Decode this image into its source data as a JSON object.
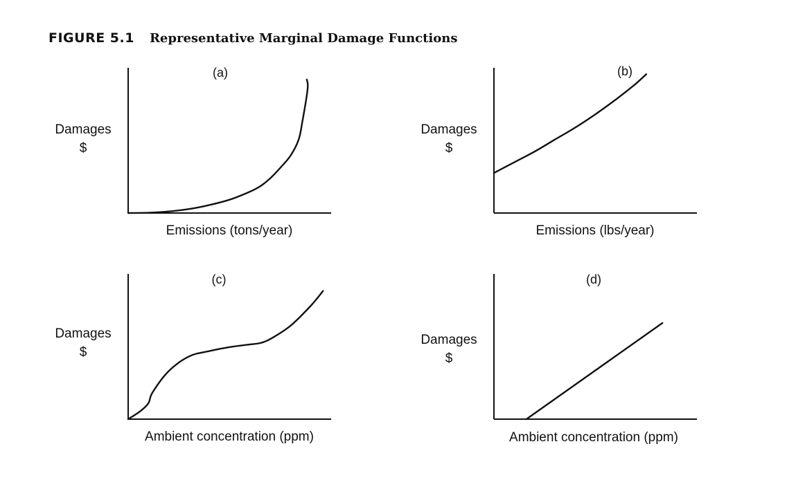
{
  "figure": {
    "number": "FIGURE 5.1",
    "title": "Representative Marginal Damage Functions"
  },
  "chart_data": [
    {
      "type": "line",
      "panel": "(a)",
      "ylabel": [
        "Damages",
        "$"
      ],
      "xlabel": "Emissions (tons/year)",
      "xlim": [
        0,
        1
      ],
      "ylim": [
        0,
        1
      ],
      "series": [
        {
          "x": [
            0,
            0.1,
            0.2,
            0.3,
            0.4,
            0.5,
            0.6,
            0.65,
            0.7,
            0.75,
            0.8,
            0.84,
            0.86,
            0.88,
            0.885,
            0.88
          ],
          "y": [
            0,
            0.002,
            0.012,
            0.03,
            0.06,
            0.1,
            0.16,
            0.2,
            0.26,
            0.34,
            0.43,
            0.55,
            0.7,
            0.88,
            0.96,
            1.0
          ]
        }
      ]
    },
    {
      "type": "line",
      "panel": "(b)",
      "ylabel": [
        "Damages",
        "$"
      ],
      "xlabel": "Emissions (lbs/year)",
      "xlim": [
        0,
        1
      ],
      "ylim": [
        0,
        1
      ],
      "series": [
        {
          "x": [
            0,
            0.1,
            0.2,
            0.3,
            0.4,
            0.5,
            0.6,
            0.7,
            0.75
          ],
          "y": [
            0.3,
            0.38,
            0.46,
            0.55,
            0.64,
            0.74,
            0.85,
            0.97,
            1.04
          ]
        }
      ]
    },
    {
      "type": "line",
      "panel": "(c)",
      "ylabel": [
        "Damages",
        "$"
      ],
      "xlabel": "Ambient concentration (ppm)",
      "xlim": [
        0,
        1
      ],
      "ylim": [
        0,
        1
      ],
      "series": [
        {
          "x": [
            0,
            0.06,
            0.1,
            0.12,
            0.2,
            0.3,
            0.4,
            0.5,
            0.6,
            0.65,
            0.7,
            0.8,
            0.9,
            0.96
          ],
          "y": [
            0,
            0.06,
            0.12,
            0.2,
            0.36,
            0.47,
            0.51,
            0.54,
            0.56,
            0.57,
            0.6,
            0.7,
            0.85,
            0.96
          ]
        }
      ]
    },
    {
      "type": "line",
      "panel": "(d)",
      "ylabel": [
        "Damages",
        "$"
      ],
      "xlabel": "Ambient concentration (ppm)",
      "xlim": [
        0,
        1
      ],
      "ylim": [
        0,
        1
      ],
      "series": [
        {
          "x": [
            0.16,
            0.83
          ],
          "y": [
            0,
            0.72
          ]
        }
      ]
    }
  ]
}
